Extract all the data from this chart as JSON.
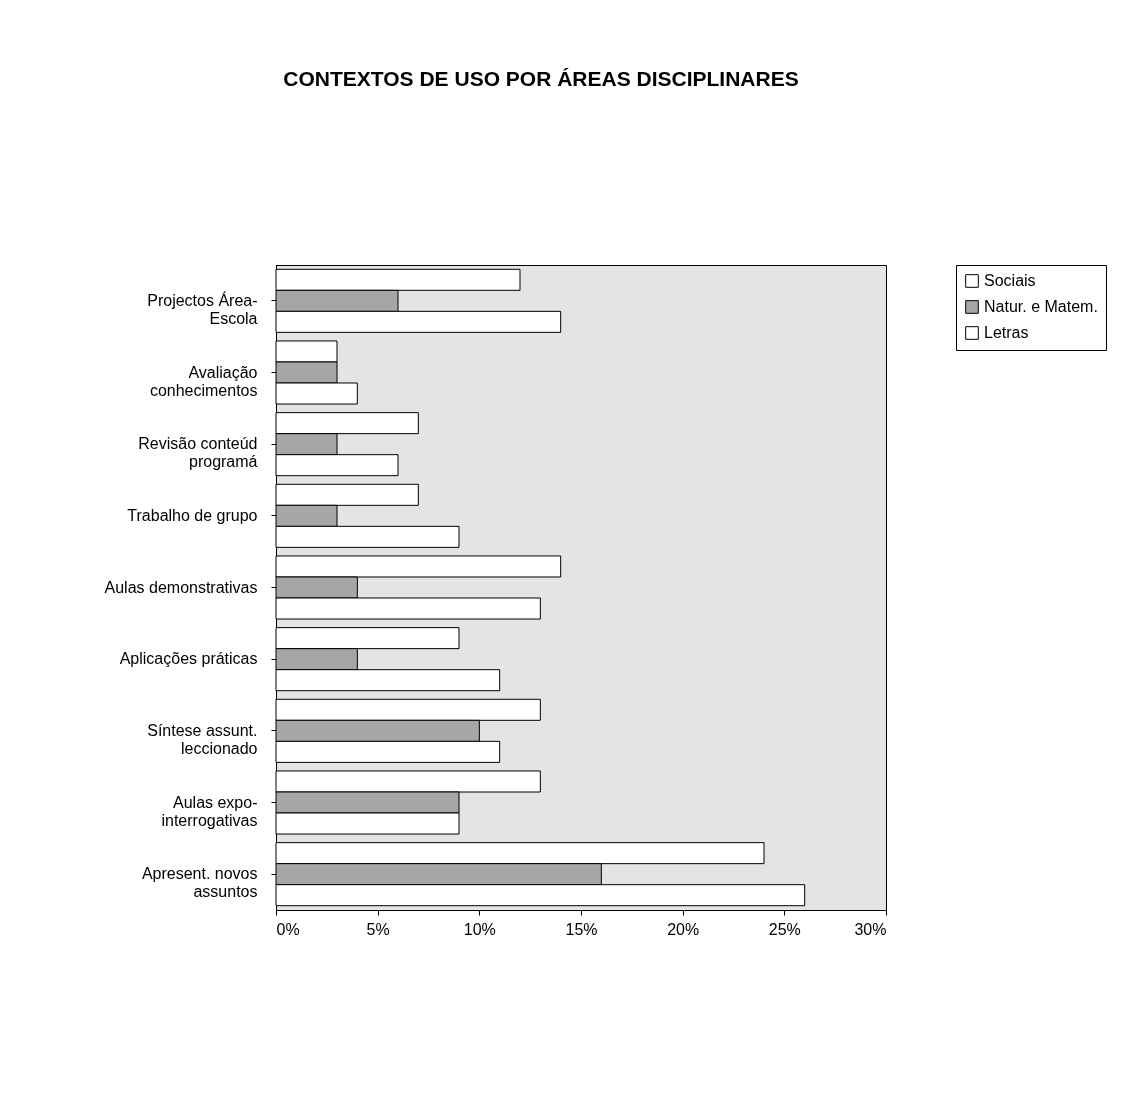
{
  "chart_data": {
    "type": "bar",
    "orientation": "horizontal",
    "title": "CONTEXTOS DE USO POR ÁREAS DISCIPLINARES",
    "categories": [
      "Projectos Área-Escola",
      "Avaliação conhecimentos",
      "Revisão conteúd programá",
      "Trabalho de grupo",
      "Aulas demonstrativas",
      "Aplicações práticas",
      "Síntese assunt. leccionado",
      "Aulas expo-interrogativas",
      "Apresent. novos assuntos"
    ],
    "series": [
      {
        "name": "Sociais",
        "color": "#ffffff",
        "values": [
          12,
          3,
          7,
          7,
          14,
          9,
          13,
          13,
          24
        ]
      },
      {
        "name": "Natur. e Matem.",
        "color": "#a6a6a6",
        "values": [
          6,
          3,
          3,
          3,
          4,
          4,
          10,
          9,
          16
        ]
      },
      {
        "name": "Letras",
        "color": "#ffffff",
        "values": [
          14,
          4,
          6,
          9,
          13,
          11,
          11,
          9,
          26
        ]
      }
    ],
    "xlim": [
      0,
      30
    ],
    "xticks": [
      {
        "value": 0,
        "label": "0%"
      },
      {
        "value": 5,
        "label": "5%"
      },
      {
        "value": 10,
        "label": "10%"
      },
      {
        "value": 15,
        "label": "15%"
      },
      {
        "value": 20,
        "label": "20%"
      },
      {
        "value": 25,
        "label": "25%"
      },
      {
        "value": 30,
        "label": "30%"
      }
    ],
    "grid": false,
    "legend": "right"
  }
}
